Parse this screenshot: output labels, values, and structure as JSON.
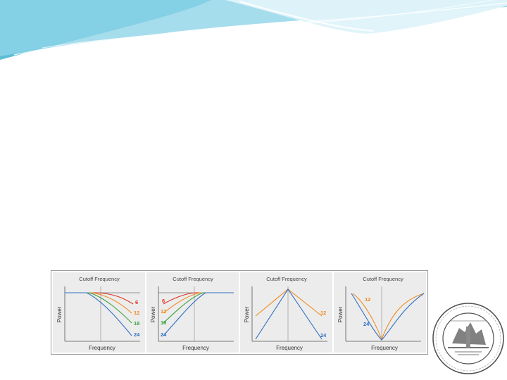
{
  "slide": {
    "banner": {
      "colors": {
        "light": "#dff3fa",
        "mid": "#8fd5e8",
        "dark": "#3fb1cf"
      }
    }
  },
  "figure": {
    "panels": [
      {
        "title": "Cutoff Frequency",
        "ylabel": "Power",
        "xlabel": "Frequency",
        "curves": [
          {
            "label": "6",
            "color": "#e03020"
          },
          {
            "label": "12",
            "color": "#f08a20"
          },
          {
            "label": "18",
            "color": "#3aa040"
          },
          {
            "label": "24",
            "color": "#2f6fc0"
          }
        ]
      },
      {
        "title": "Cutoff Frequency",
        "ylabel": "Power",
        "xlabel": "Frequency",
        "curves": [
          {
            "label": "6",
            "color": "#e03020"
          },
          {
            "label": "12",
            "color": "#f08a20"
          },
          {
            "label": "18",
            "color": "#3aa040"
          },
          {
            "label": "24",
            "color": "#2f6fc0"
          }
        ]
      },
      {
        "title": "Cutoff Frequency",
        "ylabel": "Power",
        "xlabel": "Frequency",
        "curves": [
          {
            "label": "12",
            "color": "#f08a20"
          },
          {
            "label": "24",
            "color": "#2f6fc0"
          }
        ]
      },
      {
        "title": "Cutoff Frequency",
        "ylabel": "Power",
        "xlabel": "Frequency",
        "curves": [
          {
            "label": "12",
            "color": "#f08a20"
          },
          {
            "label": "24",
            "color": "#2f6fc0"
          }
        ]
      }
    ]
  },
  "seal": {
    "icon": "institution-seal-icon"
  }
}
